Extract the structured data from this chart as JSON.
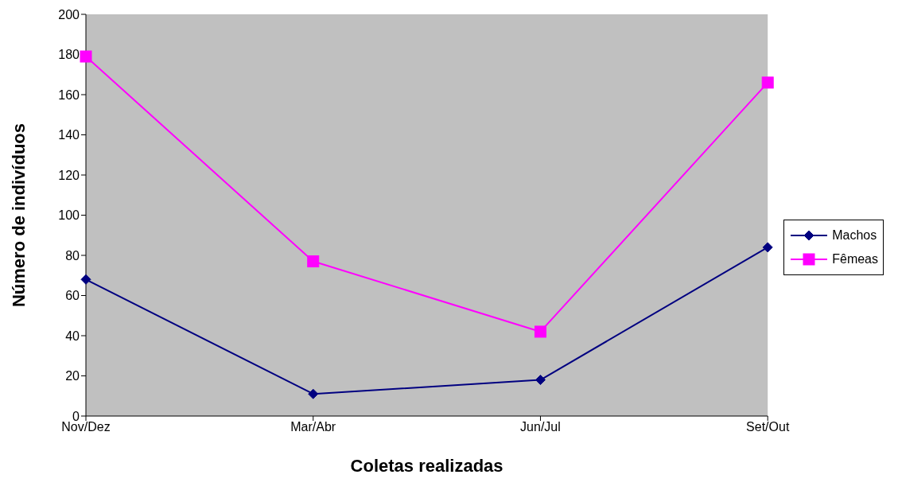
{
  "chart_data": {
    "type": "line",
    "xlabel": "Coletas realizadas",
    "ylabel": "Número de indivíduos",
    "categories": [
      "Nov/Dez",
      "Mar/Abr",
      "Jun/Jul",
      "Set/Out"
    ],
    "series": [
      {
        "name": "Machos",
        "color": "#000080",
        "marker": "diamond",
        "values": [
          68,
          11,
          18,
          84
        ]
      },
      {
        "name": "Fêmeas",
        "color": "#ff00ff",
        "marker": "square",
        "values": [
          179,
          77,
          42,
          166
        ]
      }
    ],
    "ylim": [
      0,
      200
    ],
    "yticks": [
      0,
      20,
      40,
      60,
      80,
      100,
      120,
      140,
      160,
      180,
      200
    ],
    "grid": false,
    "legend": "right"
  }
}
